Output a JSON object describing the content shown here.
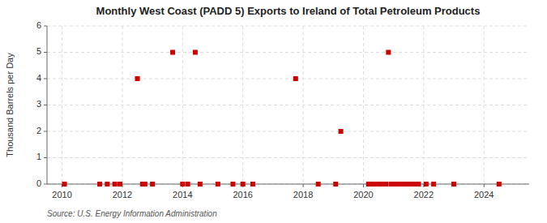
{
  "chart_data": {
    "type": "scatter",
    "title": "Monthly West Coast (PADD 5) Exports to Ireland of Total Petroleum Products",
    "ylabel": "Thousand Barrels per Day",
    "source": "Source: U.S. Energy Information Administration",
    "color": "#cc0000",
    "marker": "square",
    "grid": true,
    "xlim": [
      2009.5,
      2025.5
    ],
    "ylim": [
      0,
      6
    ],
    "xticks": [
      2010,
      2012,
      2014,
      2016,
      2018,
      2020,
      2022,
      2024
    ],
    "yticks": [
      0,
      1,
      2,
      3,
      4,
      5,
      6
    ],
    "x": [
      2010.08,
      2011.25,
      2011.5,
      2011.75,
      2011.92,
      2012.5,
      2012.67,
      2012.75,
      2013.0,
      2013.67,
      2014.0,
      2014.17,
      2014.42,
      2014.58,
      2015.17,
      2015.67,
      2016.0,
      2016.33,
      2017.75,
      2018.5,
      2019.08,
      2019.25,
      2020.17,
      2020.25,
      2020.33,
      2020.42,
      2020.5,
      2020.58,
      2020.67,
      2020.75,
      2020.83,
      2020.92,
      2021.0,
      2021.08,
      2021.17,
      2021.25,
      2021.33,
      2021.42,
      2021.5,
      2021.58,
      2021.67,
      2021.75,
      2021.83,
      2022.08,
      2022.33,
      2023.0,
      2024.5
    ],
    "values": [
      0.0,
      0.0,
      0.0,
      0.0,
      0.0,
      4.0,
      0.0,
      0.0,
      0.0,
      5.0,
      0.0,
      0.0,
      5.0,
      0.0,
      0.0,
      0.0,
      0.0,
      0.0,
      4.0,
      0.0,
      0.0,
      2.0,
      0.0,
      0.0,
      0.0,
      0.0,
      0.0,
      0.0,
      0.0,
      0.0,
      5.0,
      0.0,
      0.0,
      0.0,
      0.0,
      0.0,
      0.0,
      0.0,
      0.0,
      0.0,
      0.0,
      0.0,
      0.0,
      0.0,
      0.0,
      0.0,
      0.0
    ]
  }
}
